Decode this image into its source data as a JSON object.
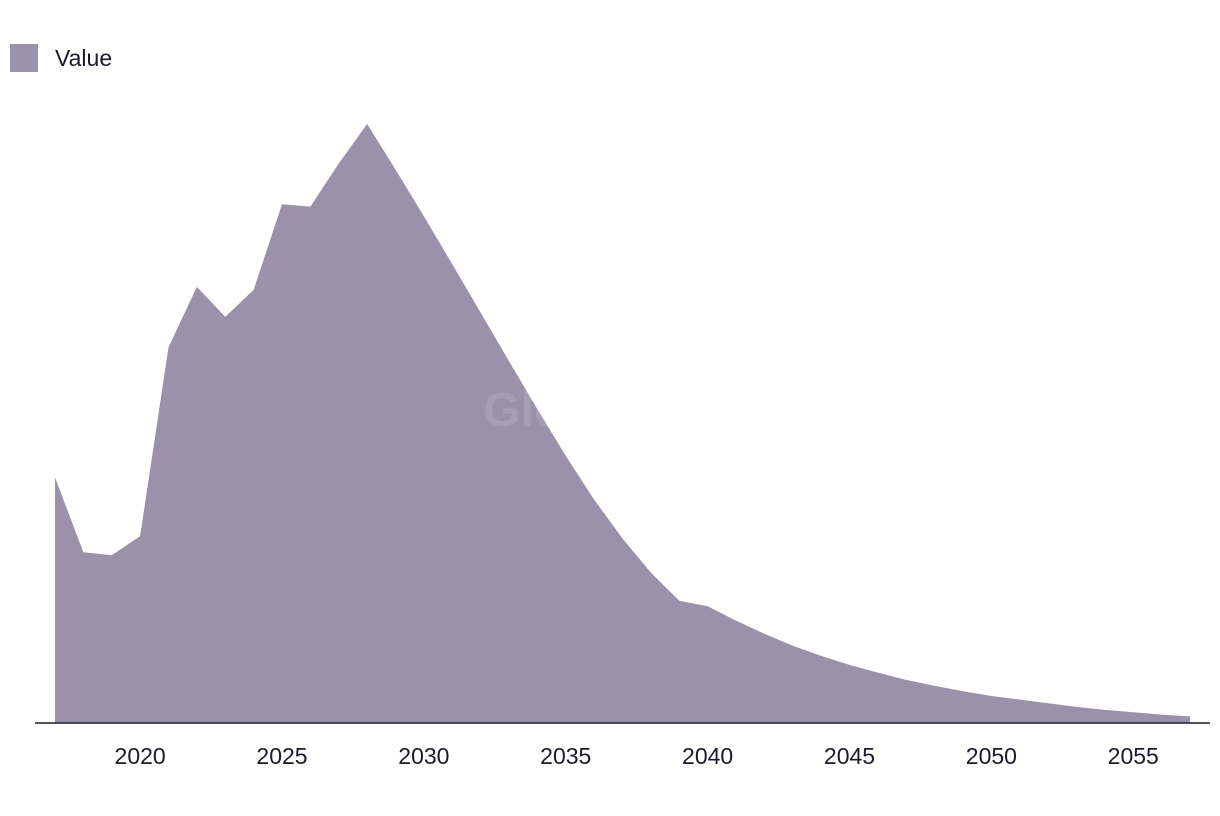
{
  "watermark": "GlobalData",
  "chart_data": {
    "type": "area",
    "x": [
      2017,
      2018,
      2019,
      2020,
      2021,
      2022,
      2023,
      2024,
      2025,
      2026,
      2027,
      2028,
      2029,
      2030,
      2031,
      2032,
      2033,
      2034,
      2035,
      2036,
      2037,
      2038,
      2039,
      2040,
      2041,
      2042,
      2043,
      2044,
      2045,
      2046,
      2047,
      2048,
      2049,
      2050,
      2051,
      2052,
      2053,
      2054,
      2055,
      2056,
      2057
    ],
    "series": [
      {
        "name": "Value",
        "color": "#9a91aa",
        "values": [
          41,
          28.5,
          28,
          31.2,
          62.7,
          72.8,
          67.8,
          72.3,
          86.6,
          86.2,
          93.4,
          100,
          92.4,
          84.6,
          76.6,
          68.5,
          60.4,
          52.4,
          44.6,
          37.3,
          30.8,
          25.1,
          20.4,
          19.5,
          17.1,
          14.9,
          12.9,
          11.2,
          9.7,
          8.4,
          7.2,
          6.2,
          5.3,
          4.5,
          3.9,
          3.3,
          2.7,
          2.2,
          1.8,
          1.4,
          1.1
        ]
      }
    ],
    "xticks": [
      2020,
      2025,
      2030,
      2035,
      2040,
      2045,
      2050,
      2055
    ],
    "xlim": [
      2017,
      2057
    ],
    "ylim": [
      0,
      100
    ],
    "grid": false,
    "legend": "top-left"
  }
}
